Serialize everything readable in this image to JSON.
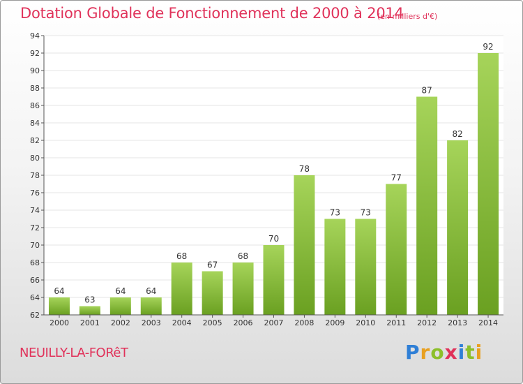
{
  "title": "Dotation Globale de Fonctionnement de 2000 à 2014",
  "subtitle": "(en milliers d'€)",
  "city": "NEUILLY-LA-FORêT",
  "brand": {
    "letters": [
      "P",
      "r",
      "o",
      "x",
      "i",
      "t",
      "i"
    ],
    "colors": [
      "#2f7fd6",
      "#e8a020",
      "#8cbf2a",
      "#e0325a",
      "#2f7fd6",
      "#8cbf2a",
      "#e8a020"
    ]
  },
  "colors": {
    "bar_top": "#a6d45a",
    "bar_bottom": "#6aa021",
    "text": "#e0325a",
    "axis": "#555555",
    "grid": "#e6e6e6"
  },
  "chart_data": {
    "type": "bar",
    "title": "Dotation Globale de Fonctionnement de 2000 à 2014",
    "subtitle": "(en milliers d'€)",
    "categories": [
      "2000",
      "2001",
      "2002",
      "2003",
      "2004",
      "2005",
      "2006",
      "2007",
      "2008",
      "2009",
      "2010",
      "2011",
      "2012",
      "2013",
      "2014"
    ],
    "values": [
      64,
      63,
      64,
      64,
      68,
      67,
      68,
      70,
      78,
      73,
      73,
      77,
      87,
      82,
      92
    ],
    "ylim": [
      62,
      94
    ],
    "yticks": [
      62,
      64,
      66,
      68,
      70,
      72,
      74,
      76,
      78,
      80,
      82,
      84,
      86,
      88,
      90,
      92,
      94
    ],
    "grid": true,
    "legend": "none"
  }
}
